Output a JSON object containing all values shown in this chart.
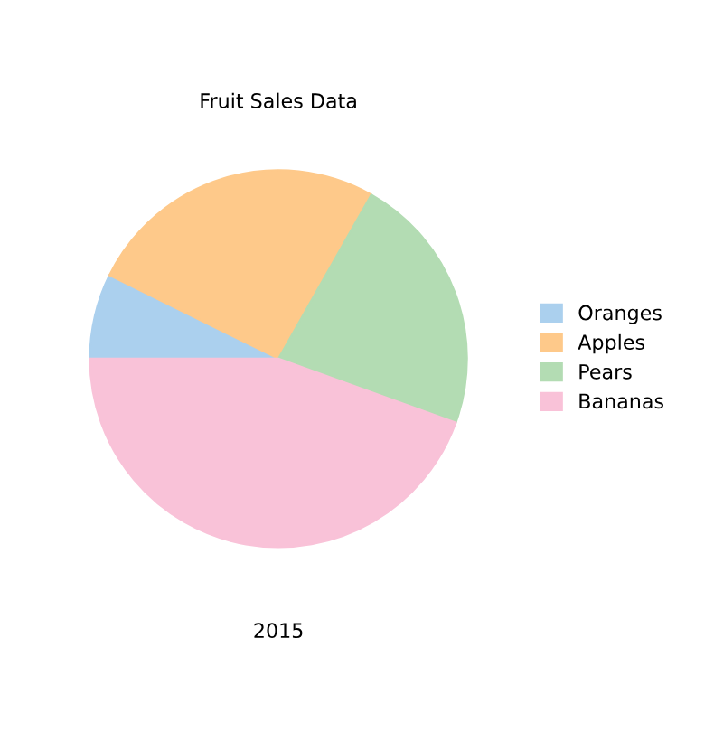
{
  "chart_data": {
    "type": "pie",
    "title": "Fruit Sales Data",
    "xlabel": "2015",
    "categories": [
      "Oranges",
      "Apples",
      "Pears",
      "Bananas"
    ],
    "values": [
      7.3,
      25.9,
      22.3,
      44.5
    ],
    "colors": [
      "#abd0ee",
      "#fec98a",
      "#b3dcb3",
      "#f9c2d8"
    ],
    "legend": "right"
  }
}
